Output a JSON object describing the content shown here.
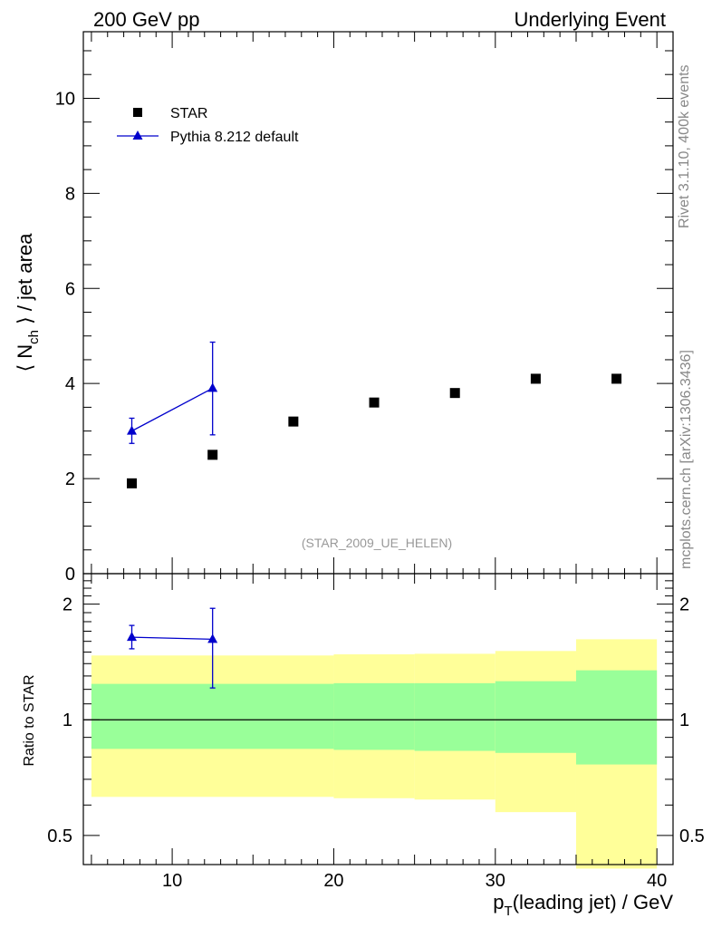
{
  "header": {
    "left": "200 GeV pp",
    "right": "Underlying Event"
  },
  "side": {
    "rivet": "Rivet 3.1.10,  400k events",
    "mcplots": "mcplots.cern.ch [arXiv:1306.3436]"
  },
  "chart_data": [
    {
      "type": "scatter",
      "title": "",
      "ylabel": "⟨ Nch ⟩ / jet area",
      "ylim": [
        0,
        11.4
      ],
      "xlim": [
        4.5,
        41
      ],
      "yticks": [
        0,
        2,
        4,
        6,
        8,
        10
      ],
      "watermark": "(STAR_2009_UE_HELEN)",
      "legend": {
        "position": "top-left",
        "entries": [
          "STAR",
          "Pythia 8.212 default"
        ]
      },
      "series": [
        {
          "name": "STAR",
          "color": "#000000",
          "marker": "square",
          "points": [
            {
              "x": 7.5,
              "y": 1.9
            },
            {
              "x": 12.5,
              "y": 2.5
            },
            {
              "x": 17.5,
              "y": 3.2
            },
            {
              "x": 22.5,
              "y": 3.6
            },
            {
              "x": 27.5,
              "y": 3.8
            },
            {
              "x": 32.5,
              "y": 4.1
            },
            {
              "x": 37.5,
              "y": 4.1
            }
          ]
        },
        {
          "name": "Pythia 8.212 default",
          "color": "#0000cc",
          "marker": "triangle",
          "points": [
            {
              "x": 7.5,
              "y": 3.0,
              "ylo": 2.74,
              "yhi": 3.27
            },
            {
              "x": 12.5,
              "y": 3.9,
              "ylo": 2.92,
              "yhi": 4.87
            }
          ]
        }
      ]
    },
    {
      "type": "line",
      "title": "",
      "xlabel": "pT(leading jet) / GeV",
      "ylabel": "Ratio to STAR",
      "log_y": true,
      "ylim": [
        0.42,
        2.4
      ],
      "xlim": [
        4.5,
        41
      ],
      "xticks": [
        10,
        20,
        30,
        40
      ],
      "yticks": [
        0.5,
        1,
        2
      ],
      "bands": {
        "inner_color": "#99ff99",
        "outer_color": "#ffff99",
        "bins": [
          {
            "x0": 5,
            "x1": 20,
            "inner": [
              0.84,
              1.24
            ],
            "outer": [
              0.63,
              1.47
            ]
          },
          {
            "x0": 20,
            "x1": 25,
            "inner": [
              0.835,
              1.245
            ],
            "outer": [
              0.625,
              1.48
            ]
          },
          {
            "x0": 25,
            "x1": 30,
            "inner": [
              0.83,
              1.245
            ],
            "outer": [
              0.62,
              1.485
            ]
          },
          {
            "x0": 30,
            "x1": 35,
            "inner": [
              0.82,
              1.26
            ],
            "outer": [
              0.575,
              1.51
            ]
          },
          {
            "x0": 35,
            "x1": 40,
            "inner": [
              0.765,
              1.345
            ],
            "outer": [
              0.41,
              1.62
            ]
          }
        ]
      },
      "reference_line": 1,
      "series": [
        {
          "name": "Pythia 8.212 default",
          "color": "#0000cc",
          "points": [
            {
              "x": 7.5,
              "y": 1.64,
              "ylo": 1.53,
              "yhi": 1.76
            },
            {
              "x": 12.5,
              "y": 1.62,
              "ylo": 1.21,
              "yhi": 1.95
            }
          ]
        }
      ]
    }
  ]
}
